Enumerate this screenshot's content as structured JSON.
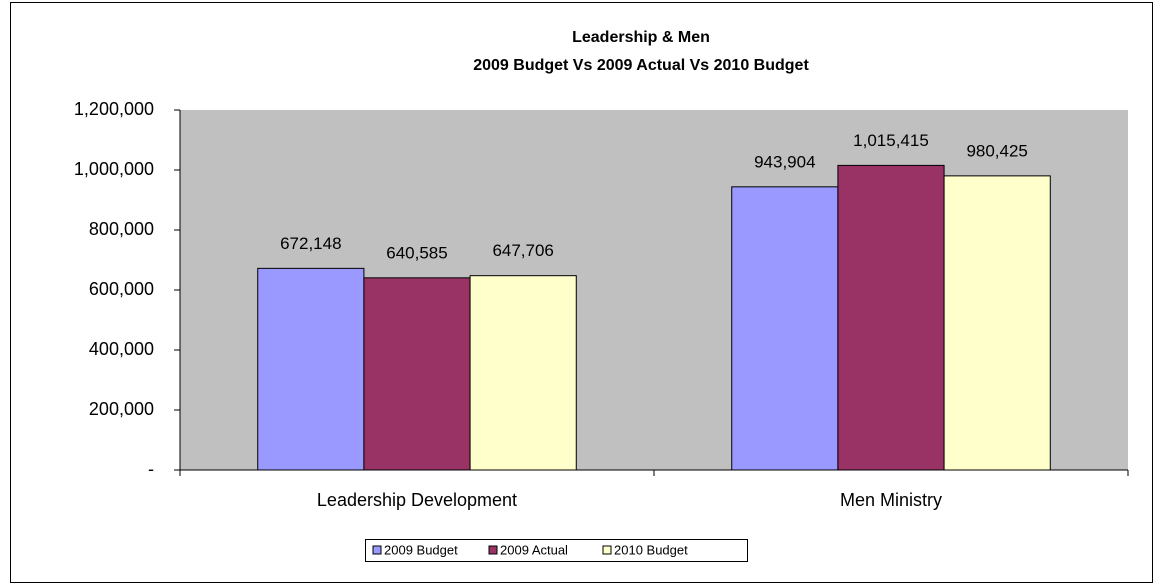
{
  "chart_data": {
    "type": "bar",
    "title": "Leadership & Men",
    "subtitle": "2009 Budget Vs 2009 Actual Vs 2010 Budget",
    "categories": [
      "Leadership Development",
      "Men Ministry"
    ],
    "series": [
      {
        "name": "2009 Budget",
        "color": "#9999ff",
        "values": [
          672148,
          943904
        ],
        "value_labels": [
          "672,148",
          "943,904"
        ]
      },
      {
        "name": "2009 Actual",
        "color": "#993366",
        "values": [
          640585,
          1015415
        ],
        "value_labels": [
          "640,585",
          "1,015,415"
        ]
      },
      {
        "name": "2010 Budget",
        "color": "#ffffcc",
        "values": [
          647706,
          980425
        ],
        "value_labels": [
          "647,706",
          "980,425"
        ]
      }
    ],
    "ylim": [
      0,
      1200000
    ],
    "yticks": [
      {
        "value": 0,
        "label": "-"
      },
      {
        "value": 200000,
        "label": "200,000"
      },
      {
        "value": 400000,
        "label": "400,000"
      },
      {
        "value": 600000,
        "label": "600,000"
      },
      {
        "value": 800000,
        "label": "800,000"
      },
      {
        "value": 1000000,
        "label": "1,000,000"
      },
      {
        "value": 1200000,
        "label": "1,200,000"
      }
    ],
    "grid": false,
    "plot_background": "#c0c0c0",
    "legend": "bottom"
  }
}
